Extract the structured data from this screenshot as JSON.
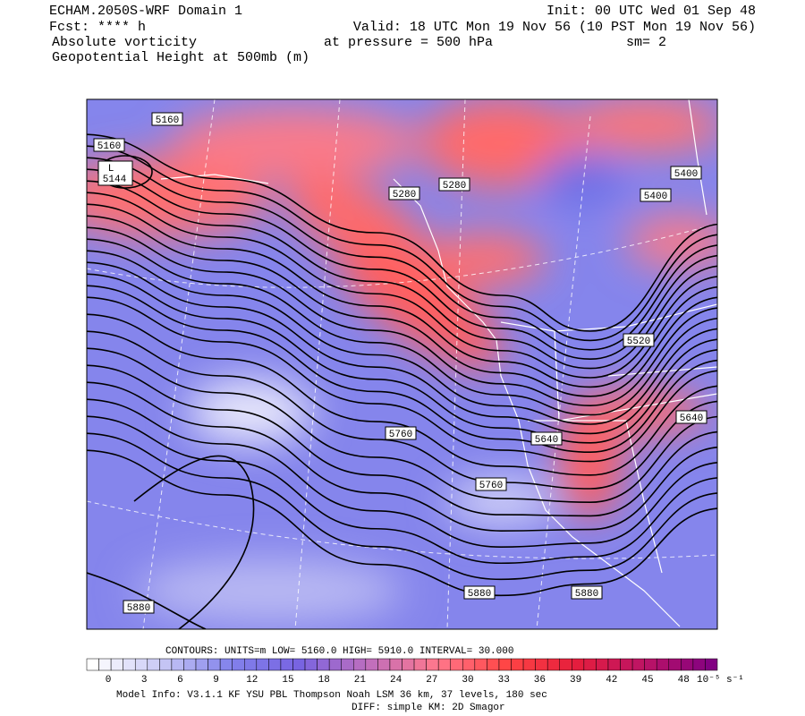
{
  "header": {
    "model": "ECHAM.2050S-WRF Domain 1",
    "init": "Init: 00 UTC Wed 01 Sep 48",
    "fcst": "Fcst: **** h",
    "valid": "Valid: 18 UTC Mon 19 Nov 56 (10 PST Mon 19 Nov 56)",
    "field1": "Absolute vorticity",
    "pressure": "at pressure =  500 hPa",
    "smooth": "sm= 2",
    "field2": "Geopotential Height at 500mb (m)"
  },
  "low": {
    "symbol": "L",
    "value": "5144"
  },
  "contour_labels": [
    "5160",
    "5160",
    "5280",
    "5280",
    "5400",
    "5400",
    "5520",
    "5640",
    "5640",
    "5760",
    "5760",
    "5880",
    "5880",
    "5880"
  ],
  "footer": {
    "contours": "CONTOURS:  UNITS=m  LOW=   5160.0      HIGH=  5910.0      INTERVAL=    30.000",
    "colorbar_ticks": [
      0,
      3,
      6,
      9,
      12,
      15,
      18,
      21,
      24,
      27,
      30,
      33,
      36,
      39,
      42,
      45,
      48
    ],
    "colorbar_unit": "10⁻⁵ s⁻¹",
    "model_info": "Model Info: V3.1.1    KF       YSU PBL   Thompson     Noah LSM  36 km,    37 levels,  180 sec",
    "diff": "DIFF: simple KM: 2D Smagor"
  }
}
